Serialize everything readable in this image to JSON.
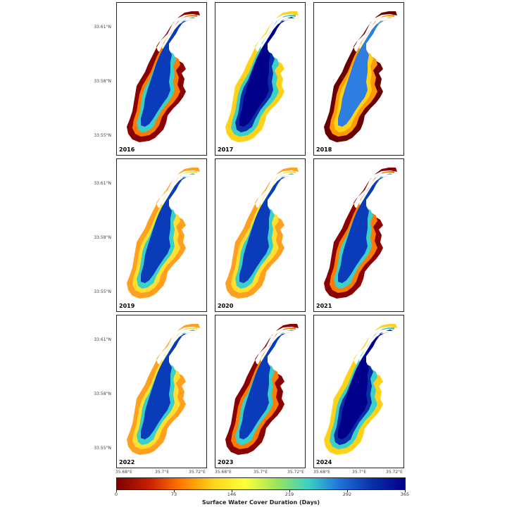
{
  "panels": [
    {
      "year": "2016",
      "profile": "dry"
    },
    {
      "year": "2017",
      "profile": "wet"
    },
    {
      "year": "2018",
      "profile": "verydry"
    },
    {
      "year": "2019",
      "profile": "moist"
    },
    {
      "year": "2020",
      "profile": "moist"
    },
    {
      "year": "2021",
      "profile": "dry"
    },
    {
      "year": "2022",
      "profile": "moist"
    },
    {
      "year": "2023",
      "profile": "dry"
    },
    {
      "year": "2024",
      "profile": "wet"
    }
  ],
  "lat_labels": [
    "33.61°N",
    "33.58°N",
    "33.55°N"
  ],
  "lon_labels": [
    "35.68°E",
    "35.7°E",
    "35.72°E"
  ],
  "colorbar": {
    "title": "Surface Water Cover Duration (Days)",
    "ticks": [
      "0",
      "73",
      "146",
      "219",
      "292",
      "365"
    ],
    "colormap": [
      "#7f0000",
      "#c81e00",
      "#ff7a00",
      "#ffd21a",
      "#ffff3a",
      "#9be45a",
      "#3ad0c8",
      "#1e6fd8",
      "#0a2ea8",
      "#00008b"
    ]
  },
  "profiles": {
    "wet": [
      "#ffd21a",
      "#3ad0c8",
      "#0a2ea8",
      "#00008b"
    ],
    "moist": [
      "#ffa020",
      "#ffe030",
      "#3ad0c8",
      "#0a3bb8"
    ],
    "dry": [
      "#8b0000",
      "#ff7a00",
      "#3ad0c8",
      "#0a3bb8"
    ],
    "verydry": [
      "#6a0000",
      "#ff9a00",
      "#ffd21a",
      "#2d7ee0"
    ]
  }
}
